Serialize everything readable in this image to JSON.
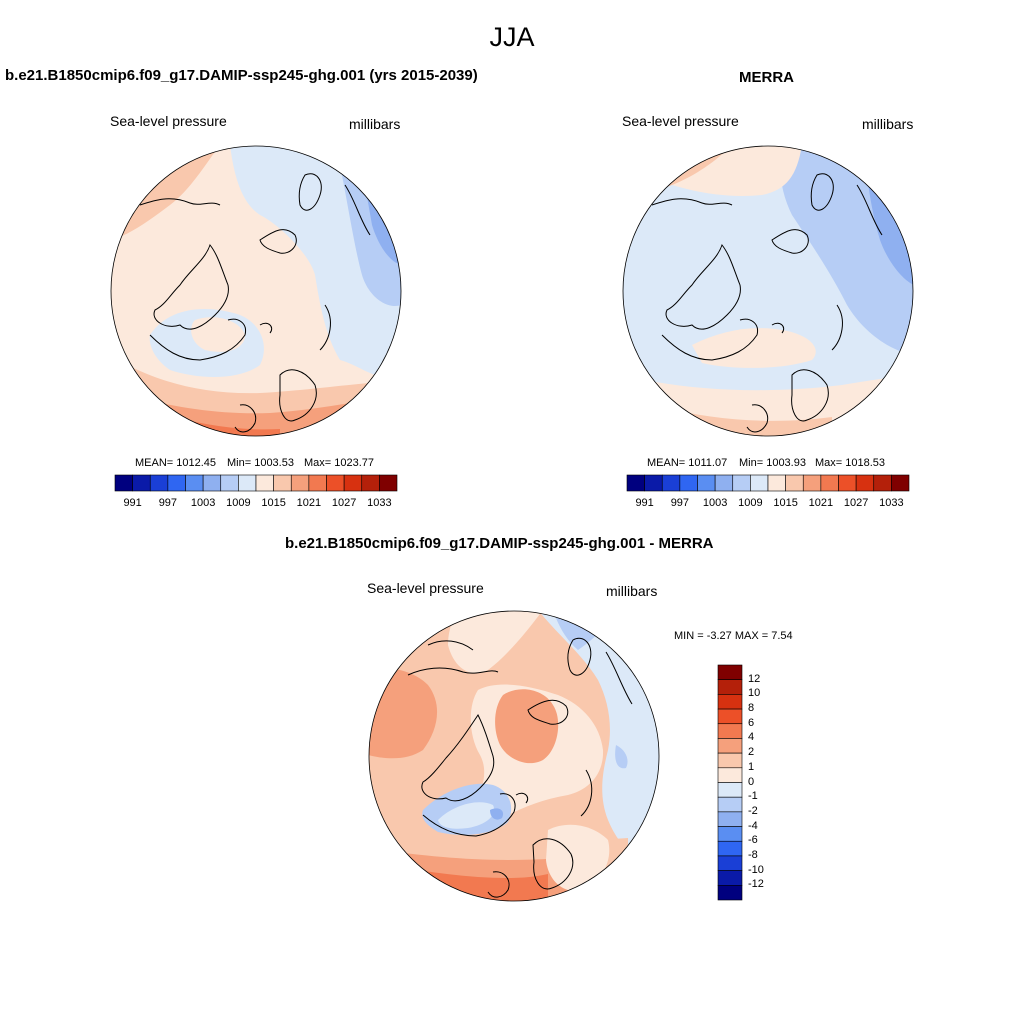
{
  "figure": {
    "title": "JJA"
  },
  "panels": [
    {
      "title": "b.e21.B1850cmip6.f09_g17.DAMIP-ssp245-ghg.001 (yrs 2015-2039)",
      "variable": "Sea-level pressure",
      "units": "millibars",
      "mean_label": "MEAN= 1012.45",
      "min_label": "Min= 1003.53",
      "max_label": "Max= 1023.77"
    },
    {
      "title": "MERRA",
      "variable": "Sea-level pressure",
      "units": "millibars",
      "mean_label": "MEAN= 1011.07",
      "min_label": "Min= 1003.93",
      "max_label": "Max= 1018.53"
    },
    {
      "title": "b.e21.B1850cmip6.f09_g17.DAMIP-ssp245-ghg.001 - MERRA",
      "variable": "Sea-level pressure",
      "units": "millibars",
      "minmax_label": "MIN =  -3.27 MAX =   7.54"
    }
  ],
  "colorbars": {
    "absolute": {
      "colors": [
        "#00007f",
        "#0a1aa8",
        "#1a3fd6",
        "#2f66f2",
        "#5a8ef2",
        "#8fb0f0",
        "#b6cdf5",
        "#dce9f8",
        "#fce9dc",
        "#f9c8ad",
        "#f5a07c",
        "#f27950",
        "#ec5028",
        "#d73110",
        "#b4200a",
        "#7f0000"
      ],
      "tick_labels": [
        "991",
        "997",
        "1003",
        "1009",
        "1015",
        "1021",
        "1027",
        "1033"
      ]
    },
    "difference": {
      "colors": [
        "#7f0000",
        "#b4200a",
        "#d73110",
        "#ec5028",
        "#f27950",
        "#f5a07c",
        "#f9c8ad",
        "#fce9dc",
        "#dce9f8",
        "#b6cdf5",
        "#8fb0f0",
        "#5a8ef2",
        "#2f66f2",
        "#1a3fd6",
        "#0a1aa8",
        "#00007f"
      ],
      "tick_labels": [
        "12",
        "10",
        "8",
        "6",
        "4",
        "2",
        "1",
        "0",
        "-1",
        "-2",
        "-4",
        "-6",
        "-8",
        "-10",
        "-12"
      ]
    }
  }
}
